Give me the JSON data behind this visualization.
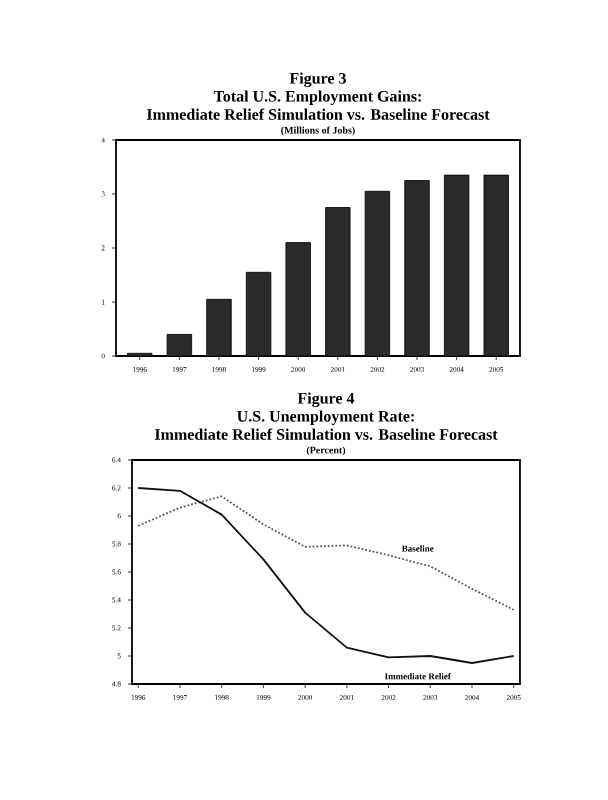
{
  "chart_data": [
    {
      "type": "bar",
      "title": "Figure 3",
      "subtitle": "Total U.S. Employment Gains:",
      "annotations": [
        "Immediate Relief Simulation vs. Baseline Forecast",
        "(Millions of Jobs)"
      ],
      "categories": [
        "1996",
        "1997",
        "1998",
        "1999",
        "2000",
        "2001",
        "2002",
        "2003",
        "2004",
        "2005"
      ],
      "values": [
        0.05,
        0.4,
        1.05,
        1.55,
        2.1,
        2.75,
        3.05,
        3.25,
        3.35,
        3.35
      ],
      "color": "#2a2a2a",
      "ylim": [
        0,
        4
      ],
      "yticks": [
        0,
        1,
        2,
        3,
        4
      ]
    },
    {
      "type": "line",
      "title": "Figure 4",
      "subtitle": "U.S. Unemployment Rate:",
      "annotations": [
        "Immediate Relief Simulation vs. Baseline Forecast",
        "(Percent)"
      ],
      "categories": [
        "1996",
        "1997",
        "1998",
        "1999",
        "2000",
        "2001",
        "2002",
        "2003",
        "2004",
        "2005"
      ],
      "series": [
        {
          "name": "Baseline",
          "color": "#555555",
          "line_style": "dotted",
          "values": [
            5.93,
            6.06,
            6.14,
            5.94,
            5.78,
            5.79,
            5.72,
            5.64,
            5.48,
            5.33
          ]
        },
        {
          "name": "Immediate Relief",
          "color": "#111111",
          "line_style": "solid",
          "values": [
            6.2,
            6.18,
            6.01,
            5.69,
            5.31,
            5.06,
            4.99,
            5.0,
            4.95,
            5.0
          ]
        }
      ],
      "ylim": [
        4.8,
        6.4
      ],
      "yticks": [
        4.8,
        5,
        5.2,
        5.4,
        5.6,
        5.8,
        6,
        6.2,
        6.4
      ]
    }
  ]
}
